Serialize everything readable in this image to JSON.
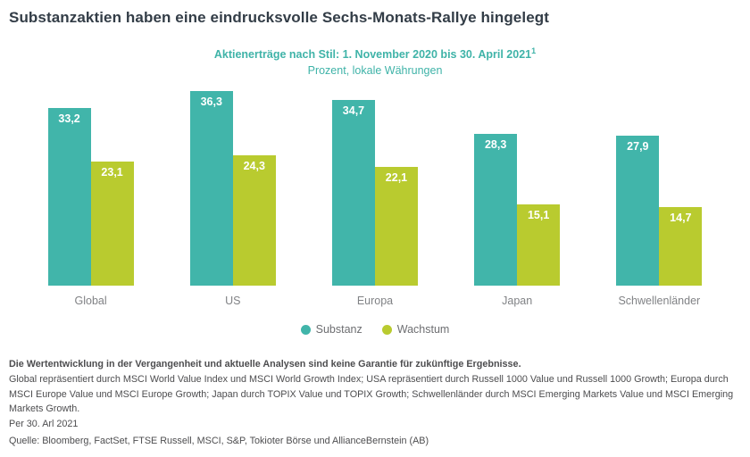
{
  "title": "Substanzaktien haben eine eindrucksvolle Sechs-Monats-Rallye hingelegt",
  "subtitle": {
    "line1": "Aktienerträge nach Stil: 1. November 2020 bis 30. April 2021",
    "line1_sup": "1",
    "line2": "Prozent, lokale Währungen"
  },
  "chart_data": {
    "type": "bar",
    "categories": [
      "Global",
      "US",
      "Europa",
      "Japan",
      "Schwellenländer"
    ],
    "series": [
      {
        "name": "Substanz",
        "color": "#41b5aa",
        "values": [
          33.2,
          36.3,
          34.7,
          28.3,
          27.9
        ],
        "labels": [
          "33,2",
          "36,3",
          "34,7",
          "28,3",
          "27,9"
        ]
      },
      {
        "name": "Wachstum",
        "color": "#b9cb2f",
        "values": [
          23.1,
          24.3,
          22.1,
          15.1,
          14.7
        ],
        "labels": [
          "23,1",
          "24,3",
          "22,1",
          "15,1",
          "14,7"
        ]
      }
    ],
    "title": "Substanzaktien haben eine eindrucksvolle Sechs-Monats-Rallye hingelegt",
    "xlabel": "",
    "ylabel": "Prozent, lokale Währungen",
    "ylim": [
      0,
      37
    ],
    "grid": false,
    "legend_position": "bottom"
  },
  "footnotes": {
    "disclaimer": "Die Wertentwicklung in der Vergangenheit und aktuelle Analysen sind keine Garantie für zukünftige Ergebnisse.",
    "indices": "Global repräsentiert durch MSCI World Value Index und MSCI World Growth Index; USA repräsentiert durch Russell 1000 Value und Russell 1000 Growth; Europa durch MSCI Europe Value und MSCI Europe Growth; Japan durch TOPIX Value und TOPIX Growth; Schwellenländer durch MSCI Emerging Markets Value und MSCI Emerging Markets Growth.",
    "as_of": "Per 30. Arl 2021",
    "source": "Quelle: Bloomberg, FactSet, FTSE Russell, MSCI, S&P, Tokioter Börse und AllianceBernstein (AB)"
  }
}
